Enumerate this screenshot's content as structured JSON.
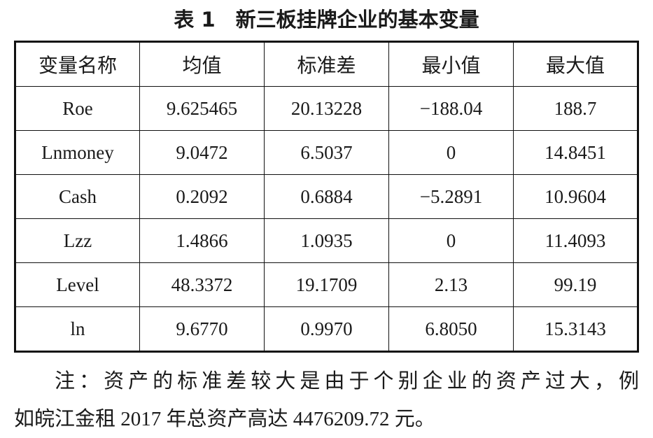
{
  "title": "表 1　新三板挂牌企业的基本变量",
  "table": {
    "header": [
      "变量名称",
      "均值",
      "标准差",
      "最小值",
      "最大值"
    ],
    "rows": [
      [
        "Roe",
        "9.625465",
        "20.13228",
        "−188.04",
        "188.7"
      ],
      [
        "Lnmoney",
        "9.0472",
        "6.5037",
        "0",
        "14.8451"
      ],
      [
        "Cash",
        "0.2092",
        "0.6884",
        "−5.2891",
        "10.9604"
      ],
      [
        "Lzz",
        "1.4866",
        "1.0935",
        "0",
        "11.4093"
      ],
      [
        "Level",
        "48.3372",
        "19.1709",
        "2.13",
        "99.19"
      ],
      [
        "ln",
        "9.6770",
        "0.9970",
        "6.8050",
        "15.3143"
      ]
    ]
  },
  "note": {
    "lines": [
      "注：资产的标准差较大是由于个别企业的资产过大，例",
      "如皖江金租 2017 年总资产高达 4476209.72 元。"
    ]
  }
}
